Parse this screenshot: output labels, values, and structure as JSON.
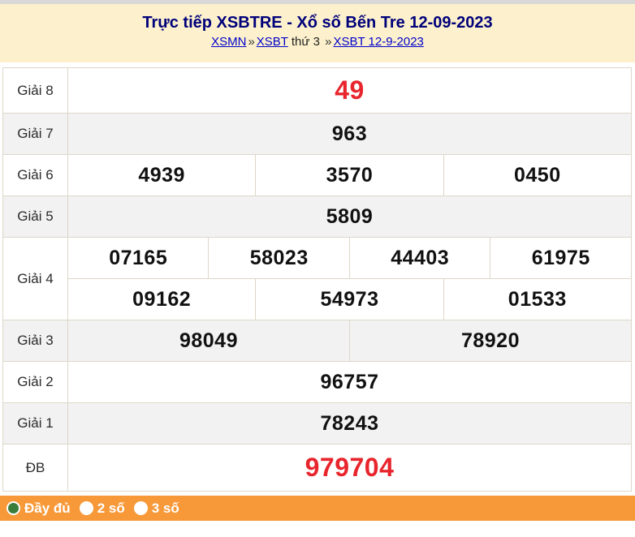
{
  "header": {
    "title": "Trực tiếp XSBTRE - Xổ số Bến Tre 12-09-2023",
    "crumb_xsmn": "XSMN",
    "crumb_sep1": "»",
    "crumb_xsbt": "XSBT",
    "crumb_mid": "thứ 3",
    "crumb_sep2": "»",
    "crumb_date": "XSBT 12-9-2023"
  },
  "prizes": {
    "g8": {
      "label": "Giải 8",
      "n1": "49"
    },
    "g7": {
      "label": "Giải 7",
      "n1": "963"
    },
    "g6": {
      "label": "Giải 6",
      "n1": "4939",
      "n2": "3570",
      "n3": "0450"
    },
    "g5": {
      "label": "Giải 5",
      "n1": "5809"
    },
    "g4": {
      "label": "Giải 4",
      "n1": "07165",
      "n2": "58023",
      "n3": "44403",
      "n4": "61975",
      "n5": "09162",
      "n6": "54973",
      "n7": "01533"
    },
    "g3": {
      "label": "Giải 3",
      "n1": "98049",
      "n2": "78920"
    },
    "g2": {
      "label": "Giải 2",
      "n1": "96757"
    },
    "g1": {
      "label": "Giải 1",
      "n1": "78243"
    },
    "db": {
      "label": "ĐB",
      "n1": "979704"
    }
  },
  "footer": {
    "opt_full": "Đầy đủ",
    "opt_2so": "2 số",
    "opt_3so": "3 số"
  },
  "colors": {
    "header_bg": "#fcf1cc",
    "accent_orange": "#f79939",
    "highlight_red": "#e8252d",
    "title_navy": "#00007a",
    "link_blue": "#0000cc",
    "row_alt": "#f2f2f2",
    "border": "#ddd7c9",
    "radio_green": "#3b7d3b",
    "topstrip": "#d8d8d8"
  }
}
